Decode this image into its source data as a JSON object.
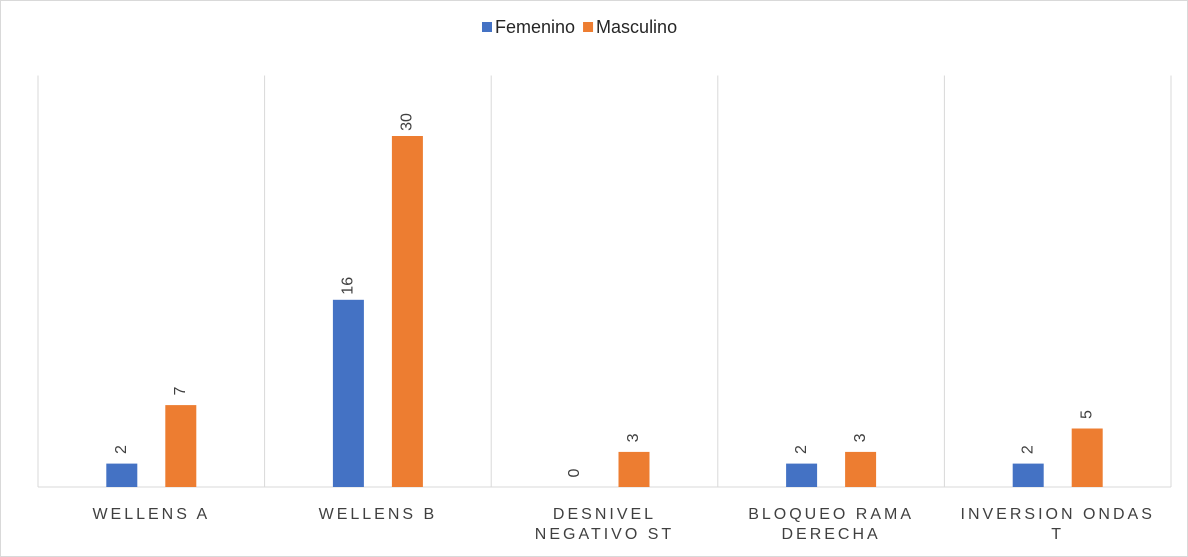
{
  "chart_data": {
    "type": "bar",
    "categories": [
      "WELLENS A",
      "WELLENS B",
      "DESNIVEL NEGATIVO ST",
      "BLOQUEO RAMA DERECHA",
      "INVERSION ONDAS T"
    ],
    "series": [
      {
        "name": "Femenino",
        "color": "#4472c4",
        "values": [
          2,
          16,
          0,
          2,
          2
        ]
      },
      {
        "name": "Masculino",
        "color": "#ed7d31",
        "values": [
          7,
          30,
          3,
          3,
          5
        ]
      }
    ],
    "ylim": [
      0,
      35
    ],
    "legend": "top"
  }
}
